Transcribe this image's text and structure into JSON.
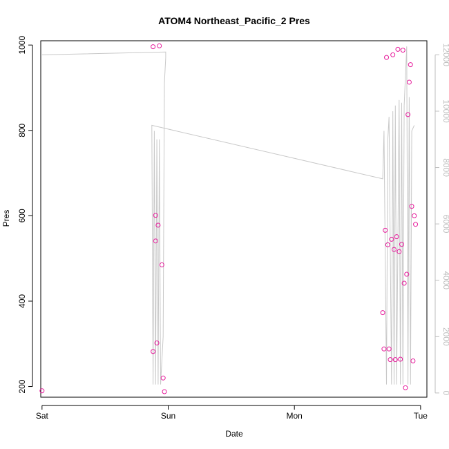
{
  "chart_data": {
    "type": "scatter",
    "title": "ATOM4 Northeast_Pacific_2 Pres",
    "xlabel": "Date",
    "ylabel": "Pres",
    "xlim": [
      -0.01,
      3.05
    ],
    "ylim": [
      175,
      1010
    ],
    "y2lim": [
      -150,
      12500
    ],
    "x_ticks": [
      {
        "v": 0,
        "label": "Sat"
      },
      {
        "v": 1,
        "label": "Sun"
      },
      {
        "v": 2,
        "label": "Mon"
      },
      {
        "v": 3,
        "label": "Tue"
      }
    ],
    "y_ticks": [
      200,
      400,
      600,
      800,
      1000
    ],
    "y2_ticks": [
      0,
      2000,
      4000,
      6000,
      8000,
      10000,
      12000
    ],
    "colors": {
      "points": "#e6199a",
      "line": "#c8c8c8",
      "right_axis": "#bdbdbd"
    },
    "series": [
      {
        "kind": "points",
        "x": [
          0.0,
          0.88,
          0.88,
          0.9,
          0.9,
          0.91,
          0.92,
          0.93,
          0.95,
          0.96,
          0.97,
          2.7,
          2.71,
          2.72,
          2.73,
          2.74,
          2.75,
          2.76,
          2.77,
          2.78,
          2.79,
          2.8,
          2.81,
          2.82,
          2.83,
          2.84,
          2.85,
          2.86,
          2.87,
          2.88,
          2.89,
          2.9,
          2.91,
          2.92,
          2.93,
          2.94,
          2.95,
          2.96
        ],
        "y": [
          190,
          996,
          282,
          601,
          541,
          302,
          578,
          998,
          485,
          220,
          188,
          373,
          288,
          566,
          971,
          532,
          288,
          263,
          545,
          977,
          521,
          263,
          551,
          990,
          516,
          264,
          533,
          988,
          442,
          197,
          463,
          837,
          913,
          954,
          622,
          260,
          600,
          580
        ]
      },
      {
        "kind": "line",
        "axis": "right",
        "x": [
          0.0,
          0.98,
          0.98,
          0.97,
          0.96,
          0.94,
          0.93,
          0.92,
          0.91,
          0.9,
          0.89,
          0.88,
          0.87,
          2.7,
          2.71,
          2.73,
          2.74,
          2.75,
          2.77,
          2.78,
          2.79,
          2.8,
          2.81,
          2.83,
          2.84,
          2.85,
          2.86,
          2.87,
          2.89,
          2.9,
          2.91,
          2.92,
          2.93,
          2.95
        ],
        "y": [
          12000,
          12100,
          11900,
          11000,
          2000,
          300,
          9000,
          300,
          9000,
          300,
          9300,
          300,
          9500,
          7600,
          9300,
          300,
          9000,
          9800,
          300,
          10000,
          300,
          10200,
          300,
          10400,
          300,
          10300,
          300,
          10200,
          12300,
          300,
          10500,
          300,
          9300,
          9500
        ]
      }
    ]
  }
}
